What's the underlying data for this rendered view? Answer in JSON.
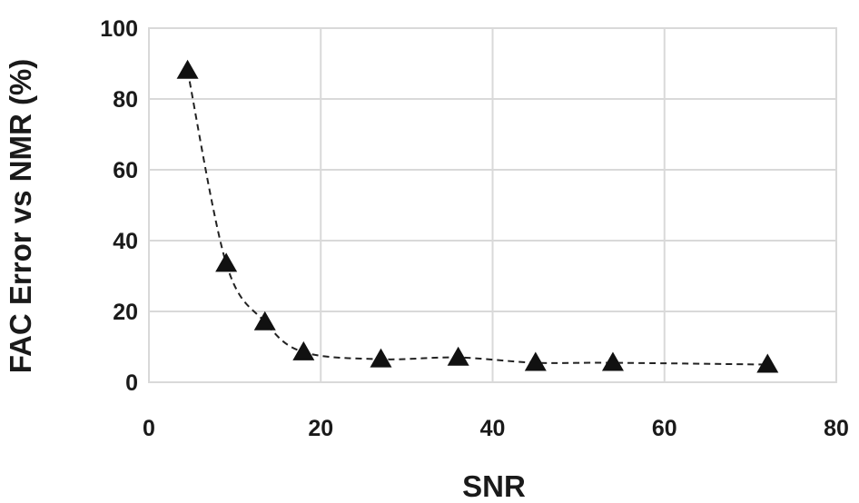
{
  "chart_data": {
    "type": "scatter",
    "xlabel": "SNR",
    "ylabel": "FAC Error vs NMR (%)",
    "xlim": [
      0,
      80
    ],
    "ylim": [
      0,
      100
    ],
    "xticks": [
      0,
      20,
      40,
      60,
      80
    ],
    "yticks": [
      0,
      20,
      40,
      60,
      80,
      100
    ],
    "grid": true,
    "marker": "triangle",
    "trendline": "dashed smooth curve through points",
    "series": [
      {
        "x": [
          4.5,
          9,
          13.5,
          18,
          27,
          36,
          45,
          54,
          72
        ],
        "y": [
          88,
          33.5,
          17,
          8.5,
          6.5,
          7,
          5.5,
          5.5,
          5
        ]
      }
    ]
  }
}
